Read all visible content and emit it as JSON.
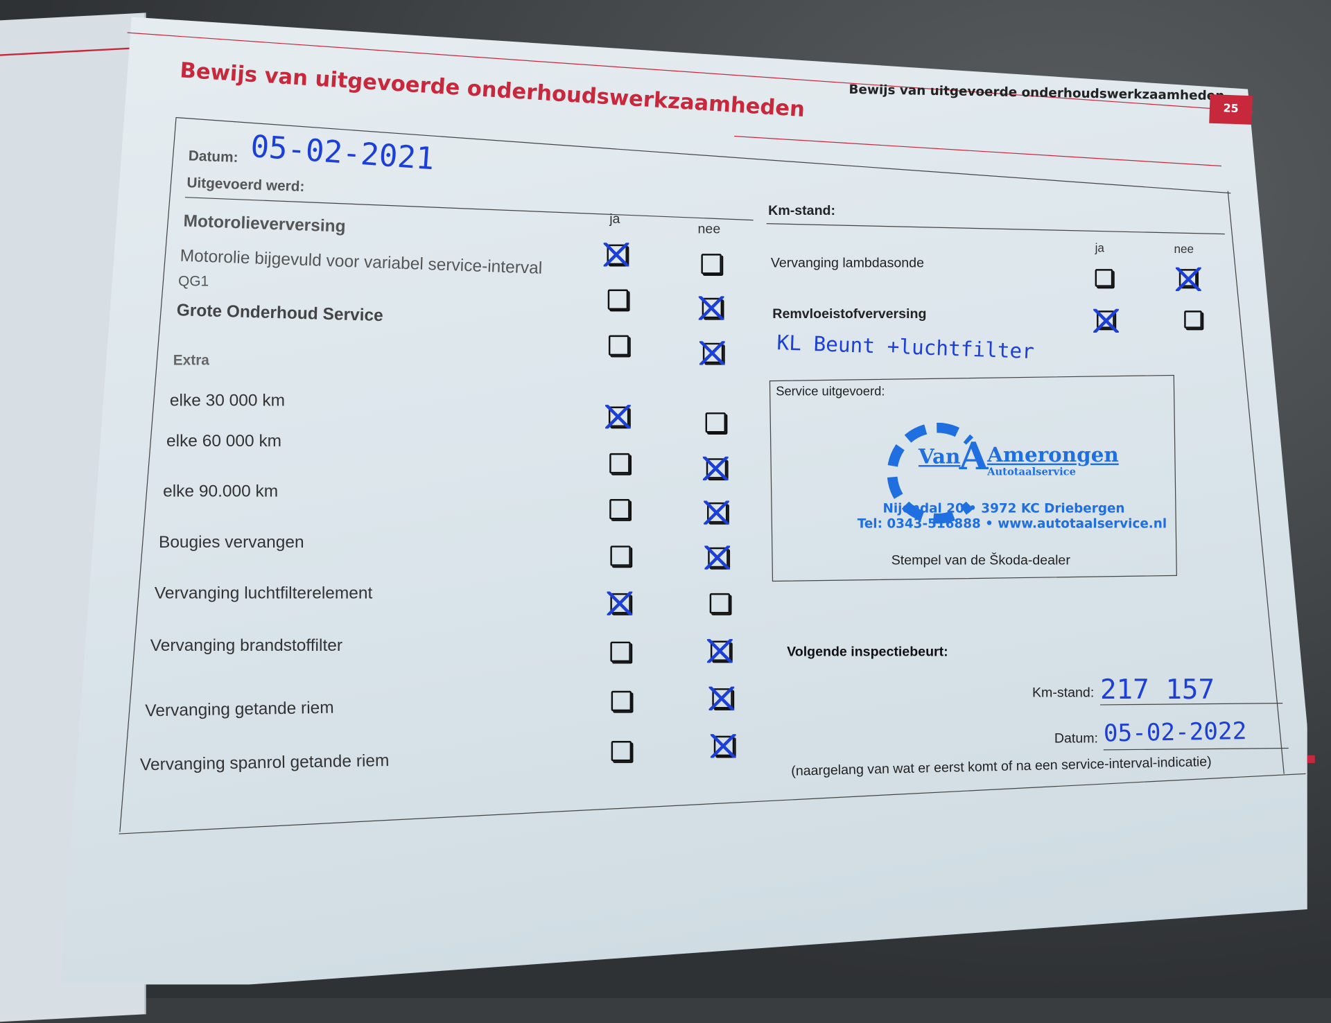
{
  "header": {
    "title": "Bewijs van uitgevoerde onderhoudswerkzaamheden",
    "running_head": "Bewijs van uitgevoerde onderhoudswerkzaamheden",
    "page_number": "25",
    "accent": "#c8283c"
  },
  "form": {
    "datum_label": "Datum:",
    "datum_value": "05-02-2021",
    "uitgevoerd_label": "Uitgevoerd werd:",
    "col_ja": "ja",
    "col_nee": "nee",
    "section_motor": "Motorolieverversing",
    "section_extra": "Extra",
    "items": [
      {
        "label": "Motorolieverversing",
        "ja": true,
        "nee": false
      },
      {
        "label": "Motorolie bijgevuld voor variabel service-interval",
        "sub": "QG1",
        "ja": false,
        "nee": true
      },
      {
        "label": "Grote Onderhoud Service",
        "ja": false,
        "nee": true
      },
      {
        "label": "elke 30 000 km",
        "ja": true,
        "nee": false
      },
      {
        "label": "elke 60 000 km",
        "ja": false,
        "nee": true
      },
      {
        "label": "elke 90.000 km",
        "ja": false,
        "nee": true
      },
      {
        "label": "Bougies vervangen",
        "ja": false,
        "nee": true
      },
      {
        "label": "Vervanging luchtfilterelement",
        "ja": true,
        "nee": false
      },
      {
        "label": "Vervanging brandstoffilter",
        "ja": false,
        "nee": true
      },
      {
        "label": "Vervanging getande riem",
        "ja": false,
        "nee": true
      },
      {
        "label": "Vervanging spanrol getande riem",
        "ja": false,
        "nee": true
      }
    ],
    "km_label": "Km-stand:",
    "right_items": [
      {
        "label": "Vervanging lambdasonde",
        "ja": false,
        "nee": true
      },
      {
        "label": "Remvloeistofverversing",
        "ja": true,
        "nee": false
      }
    ],
    "handwritten_note": "KL Beunt +luchtfilter",
    "service_label": "Service uitgevoerd:",
    "stamp": {
      "name_1": "Van",
      "name_2": "Amerongen",
      "subtitle": "Autotaalservice",
      "address": "Nijendal 20 • 3972 KC Driebergen",
      "contact": "Tel: 0343-516888 • www.autotaalservice.nl"
    },
    "stamp_caption": "Stempel van de Škoda-dealer",
    "next_label": "Volgende inspectiebeurt:",
    "next_km_label": "Km-stand:",
    "next_km_value": "217 157",
    "next_datum_label": "Datum:",
    "next_datum_value": "05-02-2022",
    "footnote": "(naargelang van wat er eerst komt of na een service-interval-indicatie)"
  }
}
